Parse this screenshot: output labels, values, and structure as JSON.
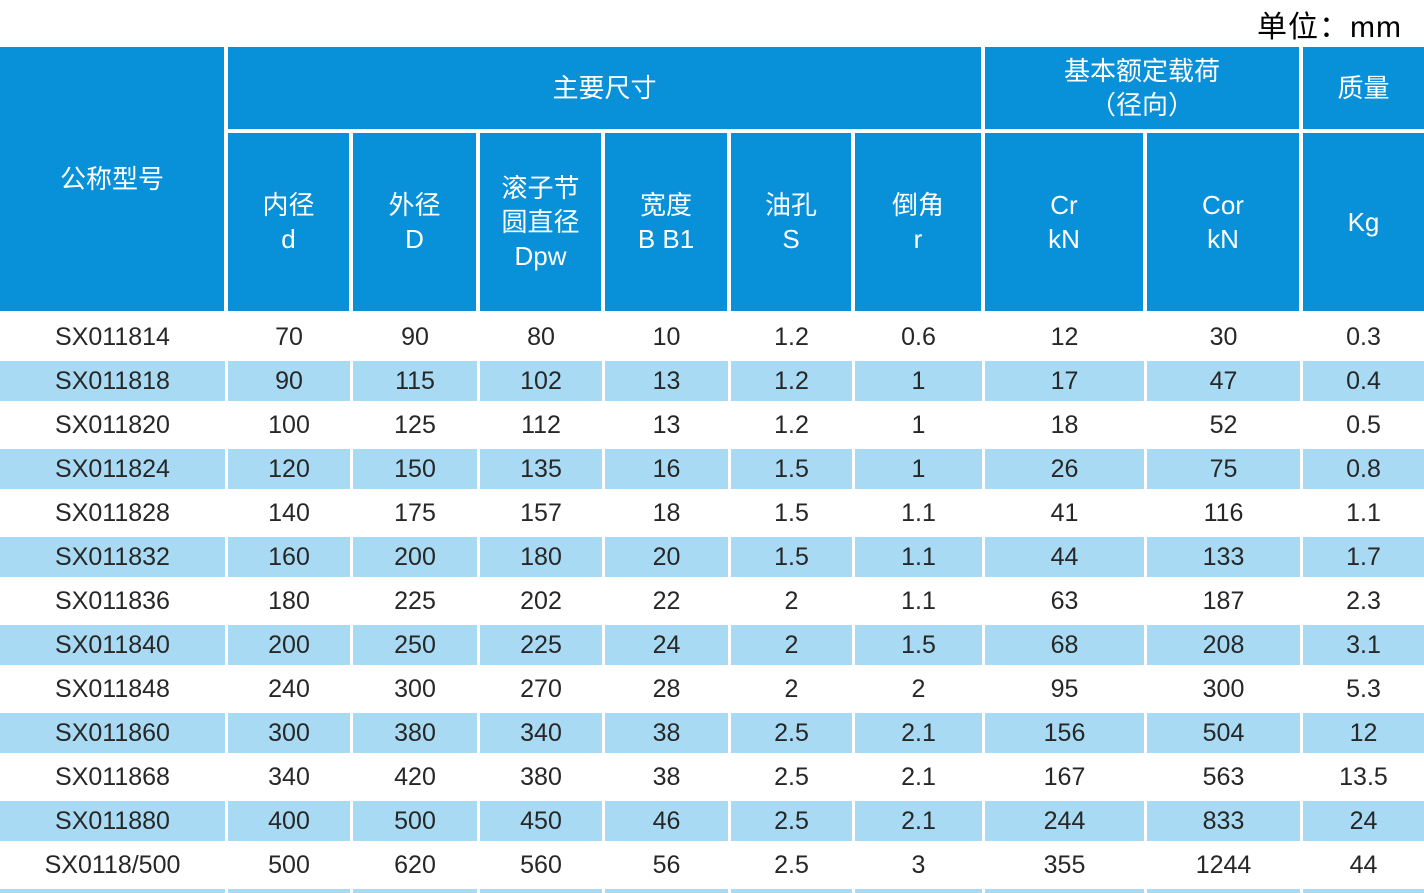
{
  "unit_label": "单位：mm",
  "colors": {
    "header_blue": "#0890d8",
    "row_highlight": "#a9daf3",
    "row_plain": "#ffffff",
    "header_text": "#ffffff",
    "body_text": "#272727",
    "unit_text": "#000000"
  },
  "table": {
    "group_headers": {
      "model": "公称型号",
      "main_dimensions": "主要尺寸",
      "basic_load_line1": "基本额定载荷",
      "basic_load_line2": "（径向）",
      "mass": "质量"
    },
    "sub_columns": [
      {
        "key": "inner-diameter",
        "lines": [
          "内径",
          "d"
        ]
      },
      {
        "key": "outer-diameter",
        "lines": [
          "外径",
          "D"
        ]
      },
      {
        "key": "roller-pitch-diameter",
        "lines": [
          "滚子节",
          "圆直径",
          "Dpw"
        ]
      },
      {
        "key": "width",
        "lines": [
          "宽度",
          "B B1"
        ]
      },
      {
        "key": "oil-hole",
        "lines": [
          "油孔",
          "S"
        ]
      },
      {
        "key": "chamfer",
        "lines": [
          "倒角",
          "r"
        ]
      },
      {
        "key": "cr",
        "lines": [
          "Cr",
          "kN"
        ]
      },
      {
        "key": "cor",
        "lines": [
          "Cor",
          "kN"
        ]
      },
      {
        "key": "mass-kg",
        "lines": [
          "Kg"
        ]
      }
    ],
    "rows": [
      {
        "model": "SX011814",
        "values": [
          "70",
          "90",
          "80",
          "10",
          "1.2",
          "0.6",
          "12",
          "30",
          "0.3"
        ],
        "highlight": false
      },
      {
        "model": "SX011818",
        "values": [
          "90",
          "115",
          "102",
          "13",
          "1.2",
          "1",
          "17",
          "47",
          "0.4"
        ],
        "highlight": true
      },
      {
        "model": "SX011820",
        "values": [
          "100",
          "125",
          "112",
          "13",
          "1.2",
          "1",
          "18",
          "52",
          "0.5"
        ],
        "highlight": false
      },
      {
        "model": "SX011824",
        "values": [
          "120",
          "150",
          "135",
          "16",
          "1.5",
          "1",
          "26",
          "75",
          "0.8"
        ],
        "highlight": true
      },
      {
        "model": "SX011828",
        "values": [
          "140",
          "175",
          "157",
          "18",
          "1.5",
          "1.1",
          "41",
          "116",
          "1.1"
        ],
        "highlight": false
      },
      {
        "model": "SX011832",
        "values": [
          "160",
          "200",
          "180",
          "20",
          "1.5",
          "1.1",
          "44",
          "133",
          "1.7"
        ],
        "highlight": true
      },
      {
        "model": "SX011836",
        "values": [
          "180",
          "225",
          "202",
          "22",
          "2",
          "1.1",
          "63",
          "187",
          "2.3"
        ],
        "highlight": false
      },
      {
        "model": "SX011840",
        "values": [
          "200",
          "250",
          "225",
          "24",
          "2",
          "1.5",
          "68",
          "208",
          "3.1"
        ],
        "highlight": true
      },
      {
        "model": "SX011848",
        "values": [
          "240",
          "300",
          "270",
          "28",
          "2",
          "2",
          "95",
          "300",
          "5.3"
        ],
        "highlight": false
      },
      {
        "model": "SX011860",
        "values": [
          "300",
          "380",
          "340",
          "38",
          "2.5",
          "2.1",
          "156",
          "504",
          "12"
        ],
        "highlight": true
      },
      {
        "model": "SX011868",
        "values": [
          "340",
          "420",
          "380",
          "38",
          "2.5",
          "2.1",
          "167",
          "563",
          "13.5"
        ],
        "highlight": false
      },
      {
        "model": "SX011880",
        "values": [
          "400",
          "500",
          "450",
          "46",
          "2.5",
          "2.1",
          "244",
          "833",
          "24"
        ],
        "highlight": true
      },
      {
        "model": "SX0118/500",
        "values": [
          "500",
          "620",
          "560",
          "56",
          "2.5",
          "3",
          "355",
          "1244",
          "44"
        ],
        "highlight": false
      }
    ],
    "partial_next_row_visible": true
  }
}
